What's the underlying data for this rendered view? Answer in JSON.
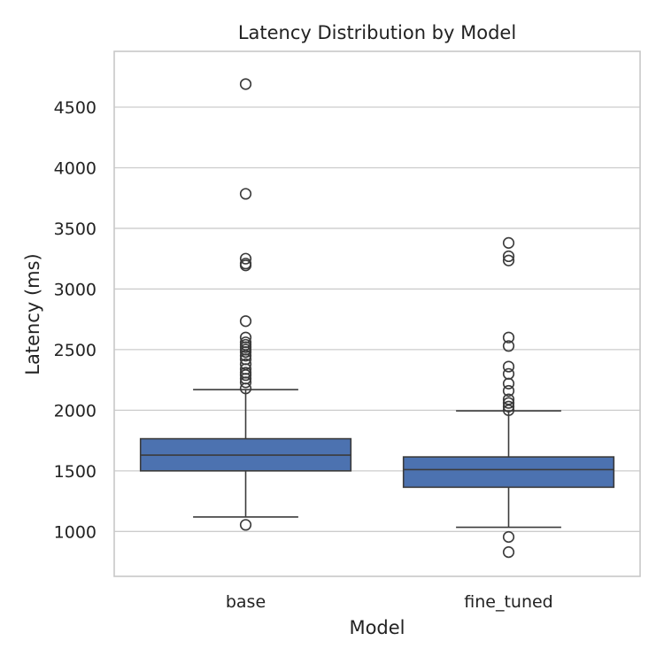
{
  "chart_data": {
    "type": "box",
    "title": "Latency Distribution by Model",
    "xlabel": "Model",
    "ylabel": "Latency (ms)",
    "ylim": [
      630,
      4960
    ],
    "yticks": [
      1000,
      1500,
      2000,
      2500,
      3000,
      3500,
      4000,
      4500
    ],
    "grid": true,
    "box_color": "#4c72b0",
    "categories": [
      "base",
      "fine_tuned"
    ],
    "boxes": [
      {
        "category": "base",
        "whisker_low": 1120,
        "q1": 1500,
        "median": 1630,
        "q3": 1765,
        "whisker_high": 2170,
        "outliers": [
          1055,
          2180,
          2230,
          2260,
          2290,
          2310,
          2340,
          2380,
          2420,
          2450,
          2480,
          2500,
          2520,
          2540,
          2560,
          2600,
          2735,
          3195,
          3210,
          3250,
          3785,
          4690
        ]
      },
      {
        "category": "fine_tuned",
        "whisker_low": 1035,
        "q1": 1365,
        "median": 1510,
        "q3": 1615,
        "whisker_high": 1995,
        "outliers": [
          830,
          955,
          2000,
          2030,
          2060,
          2090,
          2160,
          2220,
          2300,
          2360,
          2530,
          2600,
          3235,
          3270,
          3380
        ]
      }
    ]
  }
}
